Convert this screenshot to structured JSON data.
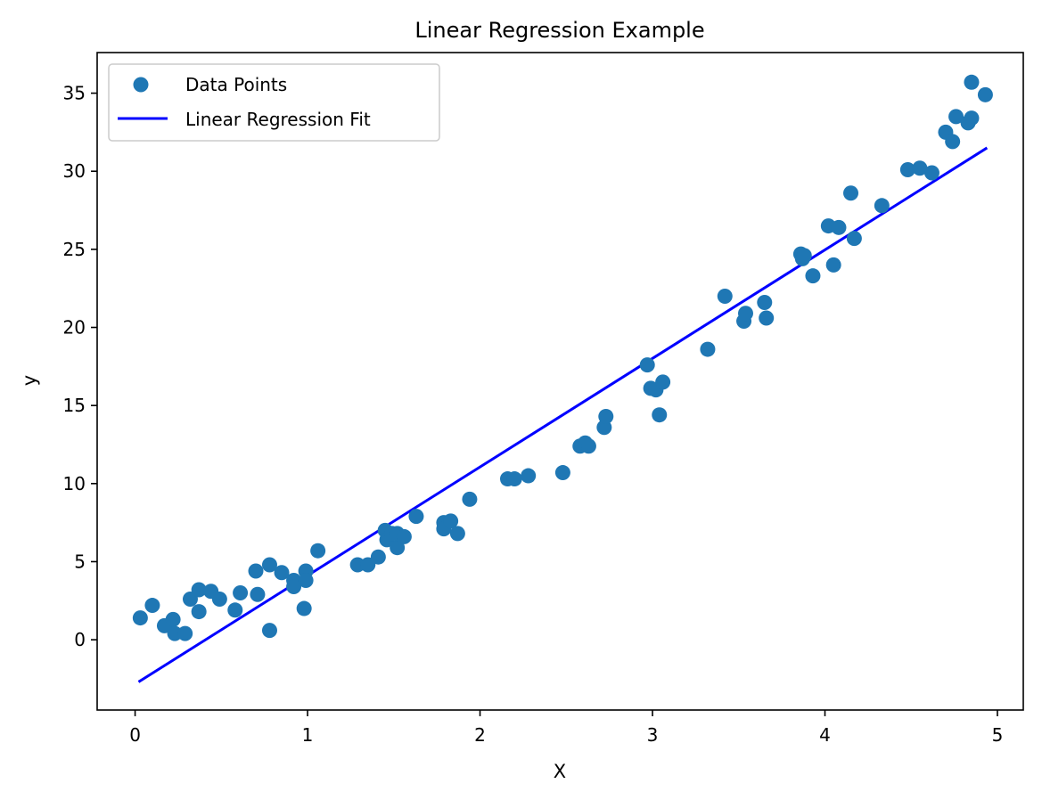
{
  "chart_data": {
    "type": "scatter",
    "title": "Linear Regression Example",
    "xlabel": "X",
    "ylabel": "y",
    "xlim": [
      -0.22,
      5.15
    ],
    "ylim": [
      -4.5,
      37.6
    ],
    "xticks": [
      0,
      1,
      2,
      3,
      4,
      5
    ],
    "yticks": [
      0,
      5,
      10,
      15,
      20,
      25,
      30,
      35
    ],
    "grid": false,
    "legend_position": "top-left",
    "series": [
      {
        "name": "Data Points",
        "kind": "scatter",
        "color": "#1f77b4",
        "points": [
          [
            0.03,
            1.4
          ],
          [
            0.1,
            2.2
          ],
          [
            0.17,
            0.9
          ],
          [
            0.22,
            1.3
          ],
          [
            0.23,
            0.4
          ],
          [
            0.29,
            0.4
          ],
          [
            0.32,
            2.6
          ],
          [
            0.37,
            3.2
          ],
          [
            0.37,
            1.8
          ],
          [
            0.44,
            3.1
          ],
          [
            0.49,
            2.6
          ],
          [
            0.58,
            1.9
          ],
          [
            0.61,
            3.0
          ],
          [
            0.7,
            4.4
          ],
          [
            0.71,
            2.9
          ],
          [
            0.78,
            4.8
          ],
          [
            0.78,
            0.6
          ],
          [
            0.85,
            4.3
          ],
          [
            0.92,
            3.8
          ],
          [
            0.92,
            3.4
          ],
          [
            0.98,
            2.0
          ],
          [
            0.99,
            4.4
          ],
          [
            0.99,
            3.8
          ],
          [
            1.06,
            5.7
          ],
          [
            1.29,
            4.8
          ],
          [
            1.35,
            4.8
          ],
          [
            1.41,
            5.3
          ],
          [
            1.45,
            7.0
          ],
          [
            1.46,
            6.4
          ],
          [
            1.49,
            6.8
          ],
          [
            1.52,
            5.9
          ],
          [
            1.52,
            6.8
          ],
          [
            1.56,
            6.6
          ],
          [
            1.63,
            7.9
          ],
          [
            1.79,
            7.5
          ],
          [
            1.79,
            7.1
          ],
          [
            1.83,
            7.6
          ],
          [
            1.87,
            6.8
          ],
          [
            1.94,
            9.0
          ],
          [
            2.16,
            10.3
          ],
          [
            2.2,
            10.3
          ],
          [
            2.28,
            10.5
          ],
          [
            2.48,
            10.7
          ],
          [
            2.58,
            12.4
          ],
          [
            2.61,
            12.6
          ],
          [
            2.63,
            12.4
          ],
          [
            2.72,
            13.6
          ],
          [
            2.73,
            14.3
          ],
          [
            2.97,
            17.6
          ],
          [
            2.99,
            16.1
          ],
          [
            3.02,
            16.0
          ],
          [
            3.04,
            14.4
          ],
          [
            3.06,
            16.5
          ],
          [
            3.32,
            18.6
          ],
          [
            3.42,
            22.0
          ],
          [
            3.53,
            20.4
          ],
          [
            3.54,
            20.9
          ],
          [
            3.65,
            21.6
          ],
          [
            3.66,
            20.6
          ],
          [
            3.86,
            24.7
          ],
          [
            3.87,
            24.4
          ],
          [
            3.88,
            24.6
          ],
          [
            3.93,
            23.3
          ],
          [
            4.02,
            26.5
          ],
          [
            4.05,
            24.0
          ],
          [
            4.08,
            26.4
          ],
          [
            4.15,
            28.6
          ],
          [
            4.17,
            25.7
          ],
          [
            4.33,
            27.8
          ],
          [
            4.48,
            30.1
          ],
          [
            4.55,
            30.2
          ],
          [
            4.62,
            29.9
          ],
          [
            4.7,
            32.5
          ],
          [
            4.74,
            31.9
          ],
          [
            4.76,
            33.5
          ],
          [
            4.83,
            33.1
          ],
          [
            4.85,
            33.4
          ],
          [
            4.85,
            35.7
          ],
          [
            4.93,
            34.9
          ]
        ]
      },
      {
        "name": "Linear Regression Fit",
        "kind": "line",
        "color": "#0000ff",
        "points": [
          [
            0.02,
            -2.7
          ],
          [
            4.94,
            31.5
          ]
        ]
      }
    ]
  }
}
